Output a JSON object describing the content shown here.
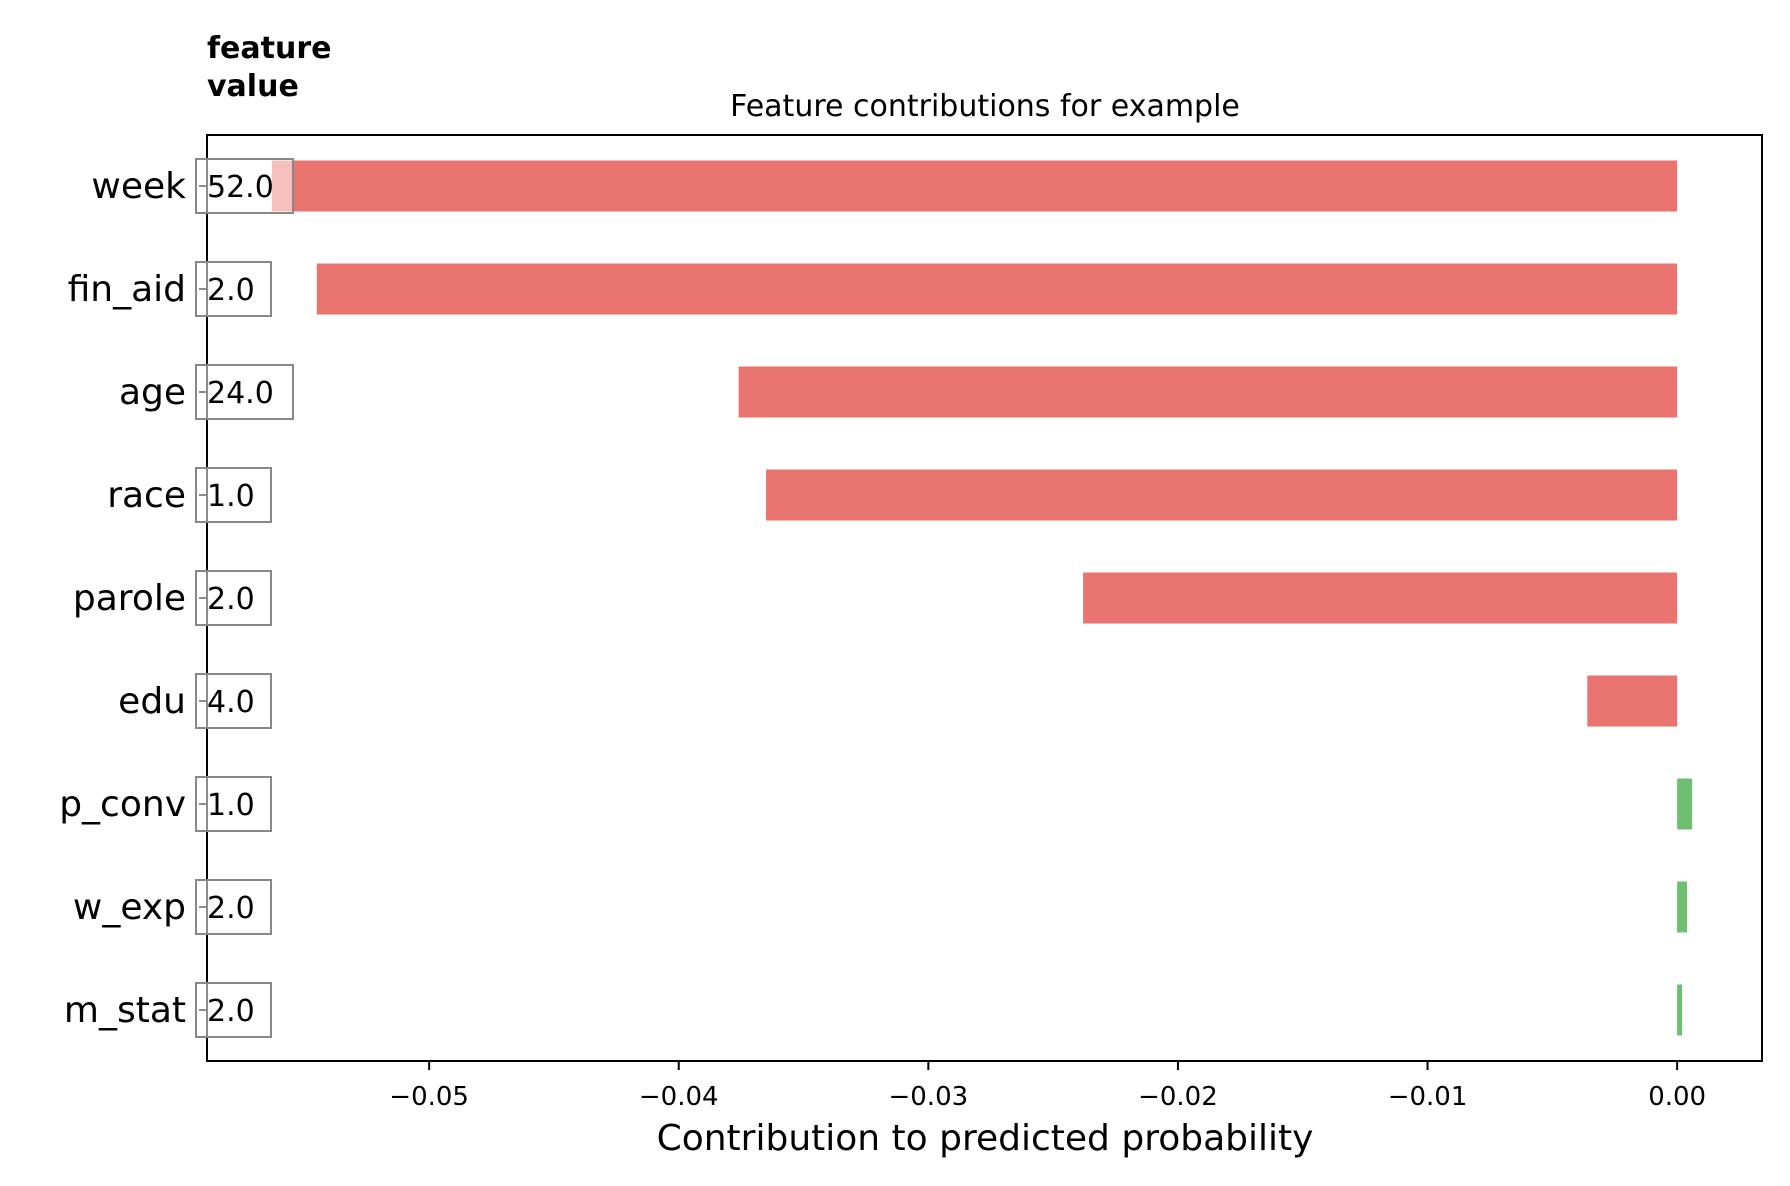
{
  "chart_data": {
    "type": "bar",
    "orientation": "horizontal",
    "title": "Feature contributions for example",
    "column_header": "feature\nvalue",
    "xlabel": "Contribution to predicted probability",
    "ylabel": "",
    "xlim": [
      -0.0589,
      0.0034
    ],
    "xticks": [
      -0.05,
      -0.04,
      -0.03,
      -0.02,
      -0.01,
      0.0
    ],
    "xtick_labels": [
      "−0.05",
      "−0.04",
      "−0.03",
      "−0.02",
      "−0.01",
      "0.00"
    ],
    "grid": false,
    "colors": {
      "negative": "#e8736f",
      "positive": "#6fbf73",
      "frame": "#000000",
      "value_box": "#888888"
    },
    "categories": [
      "week",
      "fin_aid",
      "age",
      "race",
      "parole",
      "edu",
      "p_conv",
      "w_exp",
      "m_stat"
    ],
    "feature_values": [
      "52.0",
      "2.0",
      "24.0",
      "1.0",
      "2.0",
      "4.0",
      "1.0",
      "2.0",
      "2.0"
    ],
    "values": [
      -0.0563,
      -0.0545,
      -0.0376,
      -0.0365,
      -0.0238,
      -0.0036,
      0.0006,
      0.0004,
      0.0002
    ]
  }
}
